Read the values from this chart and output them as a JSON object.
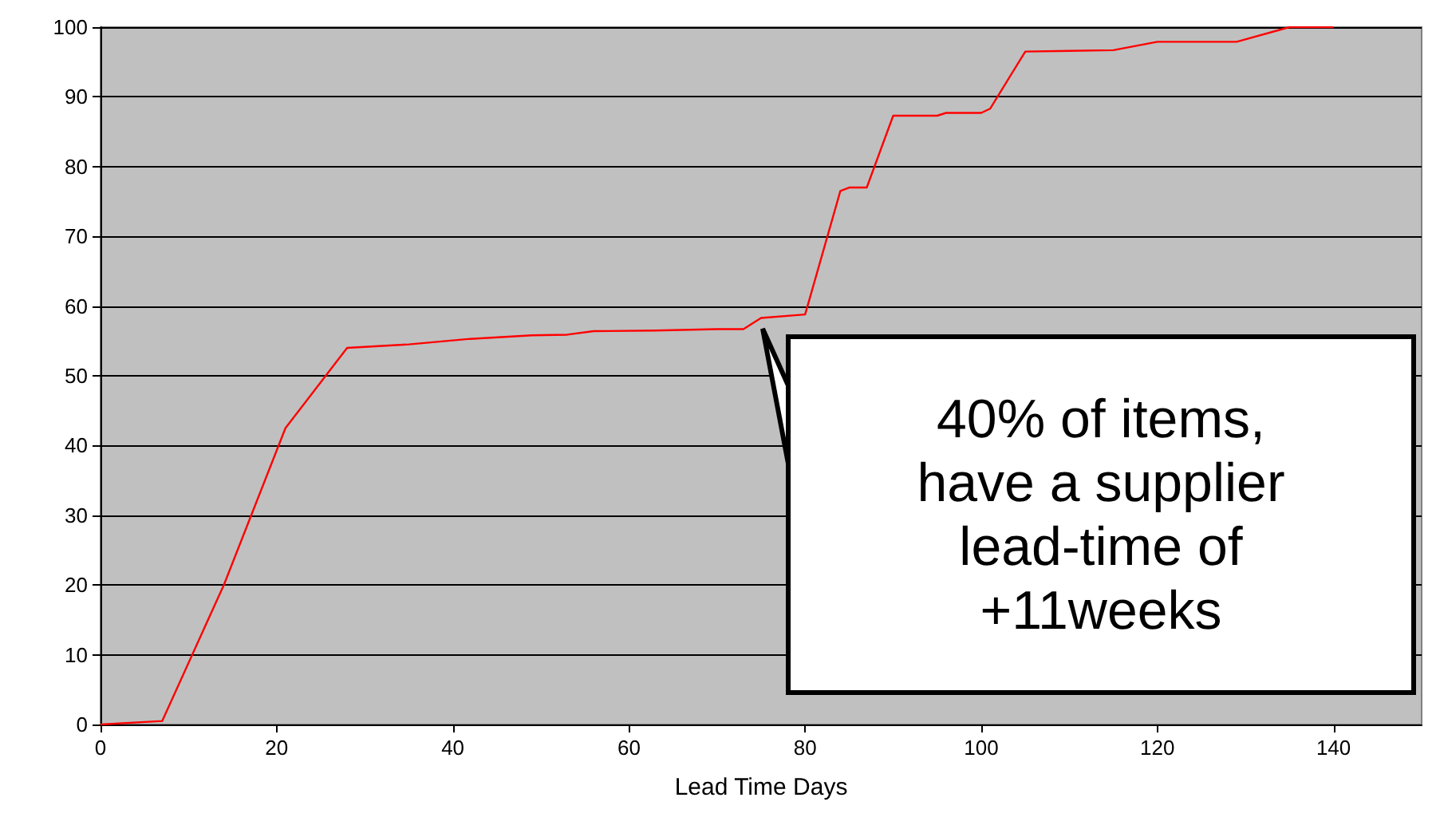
{
  "chart_data": {
    "type": "line",
    "xlabel": "Lead Time Days",
    "x": [
      0,
      7,
      14,
      21,
      28,
      35,
      42,
      49,
      53,
      56,
      63,
      70,
      73,
      75,
      80,
      84,
      85,
      87,
      90,
      95,
      96,
      100,
      101,
      105,
      110,
      115,
      120,
      129,
      135,
      140
    ],
    "series": [
      {
        "color": "#ff0000",
        "values": [
          0,
          0.5,
          20,
          42.5,
          54,
          54.5,
          55.3,
          55.8,
          55.9,
          56.4,
          56.5,
          56.7,
          56.7,
          58.3,
          58.8,
          76.5,
          77,
          77,
          87.3,
          87.3,
          87.7,
          87.7,
          88.3,
          96.5,
          96.6,
          96.7,
          97.9,
          97.9,
          100,
          100
        ]
      }
    ],
    "xlim": [
      0,
      150
    ],
    "xticks": [
      0,
      20,
      40,
      60,
      80,
      100,
      120,
      140
    ],
    "ylim": [
      0,
      100
    ],
    "yticks": [
      0,
      10,
      20,
      30,
      40,
      50,
      60,
      70,
      80,
      90,
      100
    ],
    "grid": "y",
    "marker": "none",
    "line_style": "solid",
    "annotations": [
      "40% of items, have a supplier lead-time of +11weeks"
    ]
  }
}
